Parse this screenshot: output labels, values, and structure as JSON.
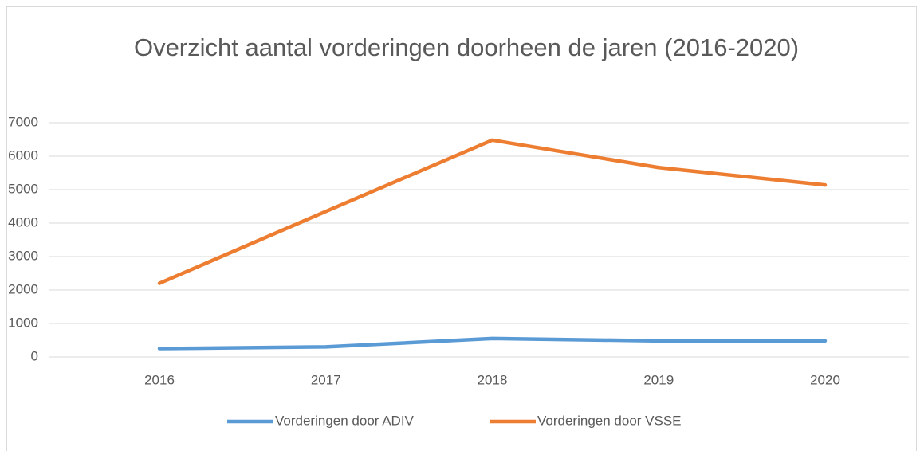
{
  "chart_data": {
    "type": "line",
    "title": "Overzicht aantal vorderingen doorheen de jaren (2016-2020)",
    "categories": [
      "2016",
      "2017",
      "2018",
      "2019",
      "2020"
    ],
    "series": [
      {
        "name": "Vorderingen door ADIV",
        "color": "#5b9bd5",
        "values": [
          250,
          300,
          550,
          480,
          480
        ]
      },
      {
        "name": "Vorderingen door VSSE",
        "color": "#ed7d31",
        "values": [
          2200,
          4350,
          6480,
          5660,
          5140
        ]
      }
    ],
    "ylim": [
      0,
      7000
    ],
    "yticks": [
      0,
      1000,
      2000,
      3000,
      4000,
      5000,
      6000,
      7000
    ],
    "grid": true,
    "legend": "bottom"
  }
}
